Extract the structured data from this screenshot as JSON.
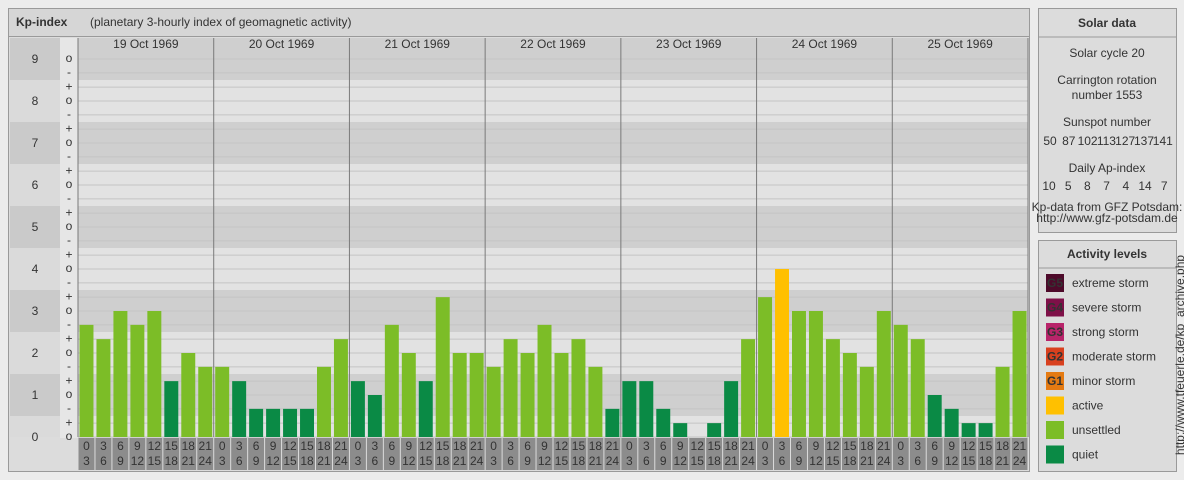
{
  "chart_data": {
    "type": "bar",
    "title": "Kp-index",
    "subtitle": "(planetary 3-hourly index of geomagnetic activity)",
    "days": [
      "19 Oct 1969",
      "20 Oct 1969",
      "21 Oct 1969",
      "22 Oct 1969",
      "23 Oct 1969",
      "24 Oct 1969",
      "25 Oct 1969"
    ],
    "hour_labels": [
      [
        "0",
        "3"
      ],
      [
        "3",
        "6"
      ],
      [
        "6",
        "9"
      ],
      [
        "9",
        "12"
      ],
      [
        "12",
        "15"
      ],
      [
        "15",
        "18"
      ],
      [
        "18",
        "21"
      ],
      [
        "21",
        "24"
      ]
    ],
    "values": [
      2.67,
      2.33,
      3,
      2.67,
      3,
      1.33,
      2,
      1.67,
      1.67,
      1.33,
      0.67,
      0.67,
      0.67,
      0.67,
      1.67,
      2.33,
      1.33,
      1,
      2.67,
      2,
      1.33,
      3.33,
      2,
      2,
      1.67,
      2.33,
      2,
      2.67,
      2,
      2.33,
      1.67,
      0.67,
      1.33,
      1.33,
      0.67,
      0.33,
      0,
      0.33,
      1.33,
      2.33,
      3.33,
      4,
      3,
      3,
      2.33,
      2,
      1.67,
      3,
      2.67,
      2.33,
      1,
      0.67,
      0.33,
      0.33,
      1.67,
      3
    ],
    "bar_colors": [
      "#7cbd27",
      "#7cbd27",
      "#7cbd27",
      "#7cbd27",
      "#7cbd27",
      "#0a8a45",
      "#7cbd27",
      "#7cbd27",
      "#7cbd27",
      "#0a8a45",
      "#0a8a45",
      "#0a8a45",
      "#0a8a45",
      "#0a8a45",
      "#7cbd27",
      "#7cbd27",
      "#0a8a45",
      "#0a8a45",
      "#7cbd27",
      "#7cbd27",
      "#0a8a45",
      "#7cbd27",
      "#7cbd27",
      "#7cbd27",
      "#7cbd27",
      "#7cbd27",
      "#7cbd27",
      "#7cbd27",
      "#7cbd27",
      "#7cbd27",
      "#7cbd27",
      "#0a8a45",
      "#0a8a45",
      "#0a8a45",
      "#0a8a45",
      "#0a8a45",
      "#0a8a45",
      "#0a8a45",
      "#0a8a45",
      "#7cbd27",
      "#7cbd27",
      "#ffc000",
      "#7cbd27",
      "#7cbd27",
      "#7cbd27",
      "#7cbd27",
      "#7cbd27",
      "#7cbd27",
      "#7cbd27",
      "#7cbd27",
      "#0a8a45",
      "#0a8a45",
      "#0a8a45",
      "#0a8a45",
      "#7cbd27",
      "#7cbd27"
    ],
    "ylim": [
      0,
      9.5
    ],
    "yticks": [
      0,
      1,
      2,
      3,
      4,
      5,
      6,
      7,
      8,
      9
    ],
    "minor_ticks": [
      {
        "value": 0,
        "label": "o"
      },
      {
        "value": 0.33,
        "label": "+"
      },
      {
        "value": 0.67,
        "label": "-"
      },
      {
        "value": 1,
        "label": "o"
      },
      {
        "value": 1.33,
        "label": "+"
      },
      {
        "value": 1.67,
        "label": "-"
      },
      {
        "value": 2,
        "label": "o"
      },
      {
        "value": 2.33,
        "label": "+"
      },
      {
        "value": 2.67,
        "label": "-"
      },
      {
        "value": 3,
        "label": "o"
      },
      {
        "value": 3.33,
        "label": "+"
      },
      {
        "value": 3.67,
        "label": "-"
      },
      {
        "value": 4,
        "label": "o"
      },
      {
        "value": 4.33,
        "label": "+"
      },
      {
        "value": 4.67,
        "label": "-"
      },
      {
        "value": 5,
        "label": "o"
      },
      {
        "value": 5.33,
        "label": "+"
      },
      {
        "value": 5.67,
        "label": "-"
      },
      {
        "value": 6,
        "label": "o"
      },
      {
        "value": 6.33,
        "label": "+"
      },
      {
        "value": 6.67,
        "label": "-"
      },
      {
        "value": 7,
        "label": "o"
      },
      {
        "value": 7.33,
        "label": "+"
      },
      {
        "value": 7.67,
        "label": "-"
      },
      {
        "value": 8,
        "label": "o"
      },
      {
        "value": 8.33,
        "label": "+"
      },
      {
        "value": 8.67,
        "label": "-"
      },
      {
        "value": 9,
        "label": "o"
      }
    ],
    "grid": true
  },
  "solar_data": {
    "title": "Solar data",
    "cycle": "Solar cycle 20",
    "carrington": [
      "Carrington rotation",
      "number 1553"
    ],
    "sunspot_title": "Sunspot number",
    "sunspot_numbers": [
      50,
      87,
      102,
      113,
      127,
      137,
      141
    ],
    "ap_title": "Daily Ap-index",
    "ap_values": [
      10,
      5,
      8,
      7,
      4,
      14,
      7
    ],
    "source": [
      "Kp-data from GFZ Potsdam:",
      "http://www.gfz-potsdam.de"
    ]
  },
  "activity_levels": {
    "title": "Activity levels",
    "items": [
      {
        "badge": "G5",
        "label": "extreme storm",
        "color": "#4d0a2a"
      },
      {
        "badge": "G4",
        "label": "severe storm",
        "color": "#7e1048"
      },
      {
        "badge": "G3",
        "label": "strong storm",
        "color": "#b8246a"
      },
      {
        "badge": "G2",
        "label": "moderate storm",
        "color": "#d8401e"
      },
      {
        "badge": "G1",
        "label": "minor storm",
        "color": "#e47a12"
      },
      {
        "badge": null,
        "label": "active",
        "color": "#ffc000"
      },
      {
        "badge": null,
        "label": "unsettled",
        "color": "#7cbd27"
      },
      {
        "badge": null,
        "label": "quiet",
        "color": "#0a8a45"
      }
    ]
  },
  "watermark": "http://www.tfeuerle.de/kp_archive.php"
}
